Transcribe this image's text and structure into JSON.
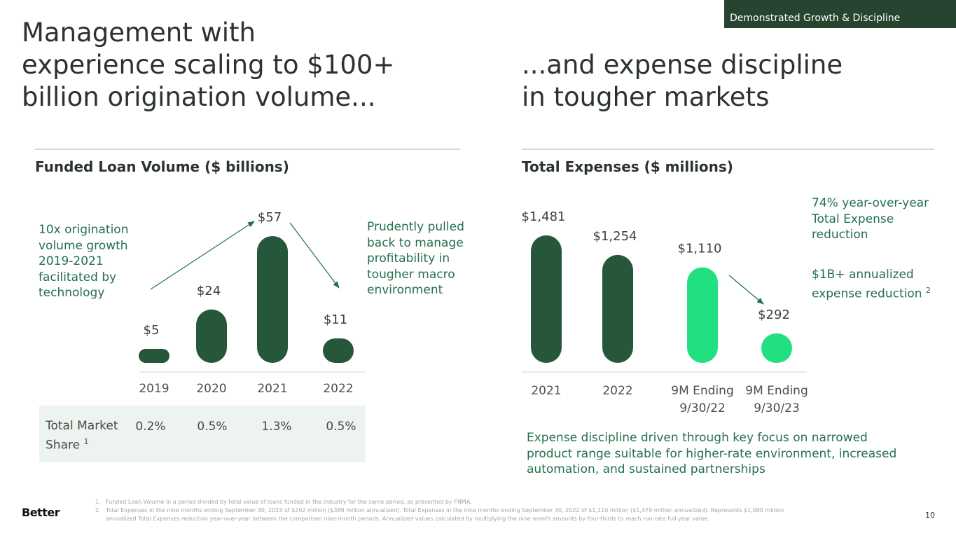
{
  "tag": "Demonstrated Growth & Discipline",
  "left_headline": "Management with\nexperience scaling to $100+\nbillion origination volume...",
  "right_headline": "...and expense discipline\nin tougher markets",
  "left_title": {
    "bold": "Funded Loan Volume",
    "unit": " ($ billions)"
  },
  "right_title": {
    "bold": "Total Expenses",
    "unit": " ($ millions)"
  },
  "growth_callout": "10x origination volume growth 2019-2021 facilitated by technology",
  "pullback_callout": "Prudently pulled back to manage profitability in tougher macro environment",
  "yoy_callout": "74% year-over-year Total Expense reduction",
  "annualized_callout": {
    "text": "$1B+ annualized expense reduction",
    "sup": "2"
  },
  "discipline_callout": "Expense discipline driven through key focus on narrowed product range suitable for higher-rate environment, increased automation, and sustained partnerships",
  "market_share": {
    "label": "Total Market Share",
    "sup": "1",
    "values": [
      "0.2%",
      "0.5%",
      "1.3%",
      "0.5%"
    ]
  },
  "footnotes": [
    {
      "num": "1.",
      "text": "Funded Loan Volume in a period divided by total value of loans funded in the industry for the same period, as presented by FNMA."
    },
    {
      "num": "2.",
      "text": "Total Expenses in the nine months ending September 30, 2023 of $292 million ($389 million annualized). Total Expenses in the nine months ending September 30, 2022 of $1,110 million ($1,479 million annualized). Represents $1,090 million annualized Total Expenses reduction year-over-year between the comparison nine-month periods. Annualized values calculated by multiplying the nine month amounts by four-thirds to reach run-rate full year value."
    }
  ],
  "logo": "Better",
  "page_number": "10",
  "colors": {
    "dark_green": "#26573a",
    "bright_green": "#21e081",
    "text_green": "#25704b",
    "tag_bg": "#26442f"
  },
  "chart_data": [
    {
      "type": "bar",
      "title": "Funded Loan Volume ($ billions)",
      "categories": [
        "2019",
        "2020",
        "2021",
        "2022"
      ],
      "values": [
        5,
        24,
        57,
        11
      ],
      "labels": [
        "$5",
        "$24",
        "$57",
        "$11"
      ],
      "colors": [
        "#26573a",
        "#26573a",
        "#26573a",
        "#26573a"
      ]
    },
    {
      "type": "bar",
      "title": "Total Expenses ($ millions)",
      "categories": [
        [
          "2021"
        ],
        [
          "2022"
        ],
        [
          "9M Ending",
          "9/30/22"
        ],
        [
          "9M Ending",
          "9/30/23"
        ]
      ],
      "values": [
        1481,
        1254,
        1110,
        292
      ],
      "labels": [
        "$1,481",
        "$1,254",
        "$1,110",
        "$292"
      ],
      "colors": [
        "#26573a",
        "#26573a",
        "#21e081",
        "#21e081"
      ]
    }
  ]
}
